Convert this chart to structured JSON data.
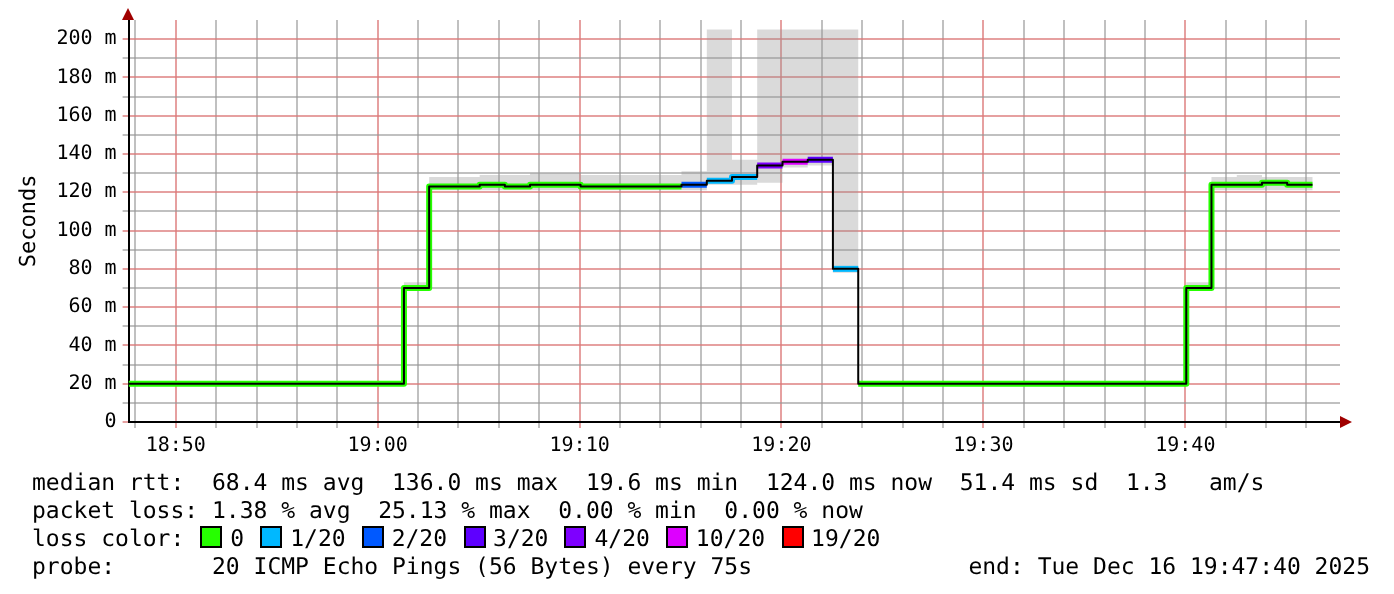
{
  "chart_data": {
    "type": "step",
    "ylabel": "Seconds",
    "xlim": [
      18.7944,
      19.7944
    ],
    "ylim": [
      0,
      210
    ],
    "xticks": [
      {
        "value": 18.8,
        "label": null
      },
      {
        "value": 18.8333,
        "label": "18:50"
      },
      {
        "value": 18.8667,
        "label": null
      },
      {
        "value": 18.9,
        "label": null
      },
      {
        "value": 18.9333,
        "label": null
      },
      {
        "value": 18.9667,
        "label": null
      },
      {
        "value": 19,
        "label": "19:00"
      },
      {
        "value": 19.0333,
        "label": null
      },
      {
        "value": 19.0667,
        "label": null
      },
      {
        "value": 19.1,
        "label": null
      },
      {
        "value": 19.1333,
        "label": null
      },
      {
        "value": 19.1667,
        "label": "19:10"
      },
      {
        "value": 19.2,
        "label": null
      },
      {
        "value": 19.2333,
        "label": null
      },
      {
        "value": 19.2667,
        "label": null
      },
      {
        "value": 19.3,
        "label": null
      },
      {
        "value": 19.3333,
        "label": "19:20"
      },
      {
        "value": 19.3667,
        "label": null
      },
      {
        "value": 19.4,
        "label": null
      },
      {
        "value": 19.4333,
        "label": null
      },
      {
        "value": 19.4667,
        "label": null
      },
      {
        "value": 19.5,
        "label": "19:30"
      },
      {
        "value": 19.5333,
        "label": null
      },
      {
        "value": 19.5667,
        "label": null
      },
      {
        "value": 19.6,
        "label": null
      },
      {
        "value": 19.6333,
        "label": null
      },
      {
        "value": 19.6667,
        "label": "19:40"
      },
      {
        "value": 19.7,
        "label": null
      },
      {
        "value": 19.7333,
        "label": null
      },
      {
        "value": 19.7667,
        "label": null
      }
    ],
    "yticks": [
      0,
      {
        "value": 10,
        "label": null
      },
      {
        "value": 20,
        "label": "20 m"
      },
      {
        "value": 30,
        "label": null
      },
      {
        "value": 40,
        "label": "40 m"
      },
      {
        "value": 50,
        "label": null
      },
      {
        "value": 60,
        "label": "60 m"
      },
      {
        "value": 70,
        "label": null
      },
      {
        "value": 80,
        "label": "80 m"
      },
      {
        "value": 90,
        "label": null
      },
      {
        "value": 100,
        "label": "100 m"
      },
      {
        "value": 110,
        "label": null
      },
      {
        "value": 120,
        "label": "120 m"
      },
      {
        "value": 130,
        "label": null
      },
      {
        "value": 140,
        "label": "140 m"
      },
      {
        "value": 150,
        "label": null
      },
      {
        "value": 160,
        "label": "160 m"
      },
      {
        "value": 170,
        "label": null
      },
      {
        "value": 180,
        "label": "180 m"
      },
      {
        "value": 190,
        "label": null
      },
      {
        "value": 200,
        "label": "200 m"
      }
    ],
    "x": [
      18.7944,
      19.0217,
      19.0425,
      19.0633,
      19.0842,
      19.105,
      19.1258,
      19.1467,
      19.1675,
      19.1883,
      19.2092,
      19.23,
      19.2508,
      19.2717,
      19.2925,
      19.3133,
      19.3342,
      19.355,
      19.3758,
      19.3967,
      19.6675,
      19.6883,
      19.7092,
      19.73,
      19.7508,
      19.7717
    ],
    "grid": true,
    "legend": "bottom",
    "legend_title": "loss color:",
    "line_style": "solid",
    "series": [
      {
        "color": "#000000",
        "values": [
          20,
          70,
          123,
          123,
          124,
          123,
          124,
          124,
          123,
          123,
          123,
          123,
          124,
          126,
          128,
          134,
          136,
          137,
          80,
          20,
          70,
          124,
          124,
          125,
          124,
          124
        ],
        "lower": [
          null,
          69,
          121,
          121,
          121,
          121,
          121,
          121,
          121,
          121,
          121,
          121,
          121,
          124,
          124,
          125,
          133,
          134,
          78,
          null,
          69,
          121,
          121,
          121,
          121,
          121
        ],
        "upper": [
          null,
          73,
          128,
          128,
          129,
          129,
          130,
          130,
          129,
          129,
          129,
          129,
          131,
          205,
          137,
          205,
          205,
          205,
          205,
          null,
          73,
          128,
          129,
          128,
          128,
          128
        ]
      },
      {
        "name": "0",
        "color": "#26ff00",
        "x": [
          18.7944,
          19.0217,
          19.0425,
          19.0633,
          19.0842,
          19.105,
          19.1258,
          19.1467,
          19.1675,
          19.1883,
          19.2092,
          19.23,
          19.2508
        ],
        "values": [
          20,
          70,
          123,
          123,
          124,
          123,
          124,
          124,
          123,
          123,
          123,
          123,
          123
        ]
      },
      {
        "name": "1/20",
        "color": "#00b8ff",
        "x": [
          19.2717,
          19.2925,
          19.3133
        ],
        "values": [
          126,
          128,
          128
        ]
      },
      {
        "name": "2/20",
        "color": "#0059ff",
        "x": [
          19.2508,
          19.2717
        ],
        "values": [
          124,
          124
        ]
      },
      {
        "name": "3/20",
        "color": "#5e00ff",
        "x": [
          19.355,
          19.3758
        ],
        "values": [
          137,
          137
        ]
      },
      {
        "name": "4/20",
        "color": "#7e00ff",
        "x": [
          19.3133,
          19.3342
        ],
        "values": [
          134,
          134
        ]
      },
      {
        "name": "10/20",
        "color": "#dd00ff",
        "x": [
          19.3342,
          19.355
        ],
        "values": [
          136,
          136
        ]
      },
      {
        "name": "19/20",
        "color": "#ff0000",
        "values": [
          null,
          null,
          null,
          null,
          null,
          null,
          null,
          null,
          null,
          null,
          null,
          null,
          null,
          null,
          null,
          null,
          null,
          null,
          null,
          null,
          null,
          null,
          null,
          null,
          null,
          null
        ]
      },
      {
        "color": "#26ff00",
        "x": [
          19.3967,
          19.6675,
          19.6883,
          19.7092,
          19.73,
          19.7508,
          19.7717
        ],
        "values": [
          20,
          70,
          124,
          124,
          125,
          124,
          124
        ]
      },
      {
        "color": "#00b8ff",
        "x": [
          19.3758,
          19.3967
        ],
        "values": [
          80,
          80
        ]
      }
    ],
    "annotations": [
      "median rtt:  68.4 ms avg  136.0 ms max  19.6 ms min  124.0 ms now  51.4 ms sd  1.3   am/s",
      "packet loss: 1.38 % avg  25.13 % max  0.00 % min  0.00 % now",
      "probe:       20 ICMP Echo Pings (56 Bytes) every 75s",
      "end: Tue Dec 16 19:47:40 2025"
    ]
  }
}
